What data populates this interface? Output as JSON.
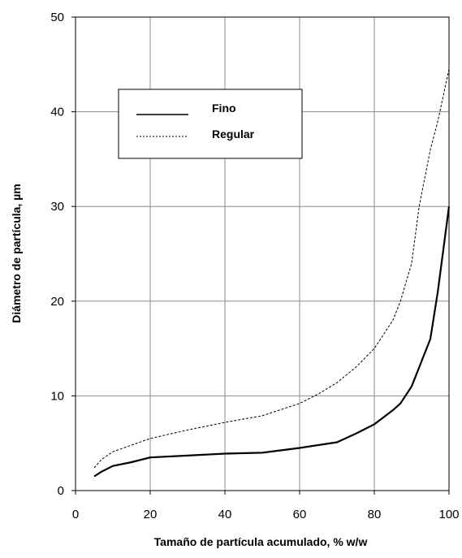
{
  "chart_data": {
    "type": "line",
    "title": "",
    "xlabel": "Tamaño de partícula acumulado, % w/w",
    "ylabel": "Diámetro de partícula, µm",
    "xlim": [
      0,
      100
    ],
    "ylim": [
      0,
      50
    ],
    "x_ticks": [
      0,
      20,
      40,
      60,
      80,
      100
    ],
    "y_ticks": [
      0,
      10,
      20,
      30,
      40,
      50
    ],
    "grid": true,
    "legend_position": "upper-left",
    "series": [
      {
        "name": "Fino",
        "line_style": "solid",
        "color": "#000000",
        "x": [
          5,
          7,
          10,
          15,
          20,
          30,
          40,
          50,
          60,
          65,
          70,
          75,
          80,
          85,
          87,
          90,
          92,
          95,
          97,
          100
        ],
        "y": [
          1.5,
          2.0,
          2.6,
          3.0,
          3.5,
          3.7,
          3.9,
          4.0,
          4.5,
          4.8,
          5.1,
          6.0,
          7.0,
          8.5,
          9.2,
          11.0,
          13.0,
          16.0,
          21.0,
          30.0
        ]
      },
      {
        "name": "Regular",
        "line_style": "dashed",
        "color": "#000000",
        "x": [
          5,
          7,
          10,
          15,
          20,
          30,
          40,
          50,
          60,
          65,
          70,
          75,
          80,
          85,
          87,
          90,
          92,
          95,
          97,
          100
        ],
        "y": [
          2.4,
          3.3,
          4.1,
          4.8,
          5.5,
          6.4,
          7.2,
          7.9,
          9.2,
          10.2,
          11.4,
          13.0,
          15.0,
          18.0,
          20.0,
          24.0,
          30.0,
          36.0,
          39.0,
          44.5
        ]
      }
    ]
  }
}
